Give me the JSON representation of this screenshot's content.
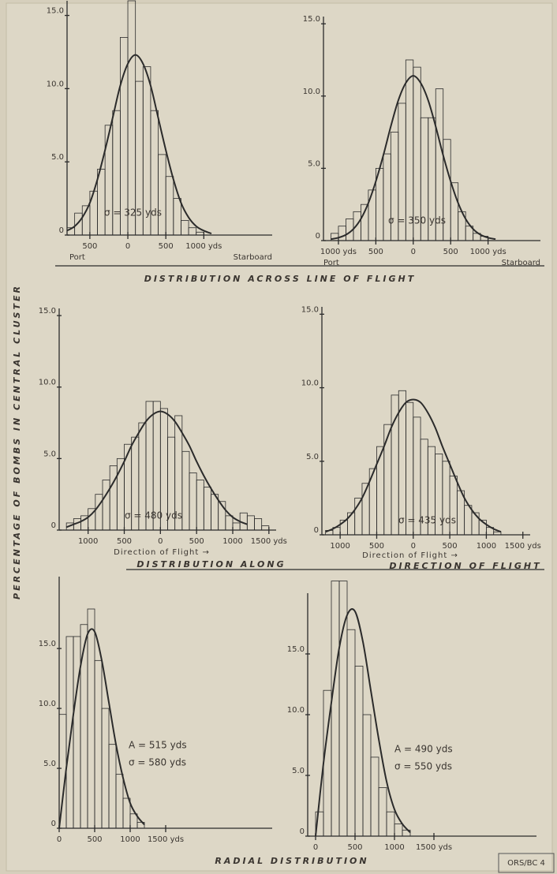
{
  "sheet": {
    "y_axis_title": "PERCENTAGE OF BOMBS IN CENTRAL CLUSTER",
    "heading_across": "DISTRIBUTION ACROSS LINE OF FLIGHT",
    "heading_along": "DISTRIBUTION ALONG",
    "heading_direction": "DIRECTION OF FLIGHT",
    "heading_radial": "RADIAL DISTRIBUTION",
    "stamp": "ORS/BC 4"
  },
  "chart_data": [
    {
      "type": "histogram",
      "color": "#2b2b2b",
      "bins": [
        -800,
        -700,
        -600,
        -500,
        -400,
        -300,
        -200,
        -100,
        0,
        100,
        200,
        300,
        400,
        500,
        600,
        700,
        800,
        900,
        1000
      ],
      "values": [
        0.5,
        1.5,
        2,
        3,
        4.5,
        7.5,
        8.5,
        13.5,
        16,
        10.5,
        11.5,
        8.5,
        5.5,
        4,
        2.5,
        1,
        0.5,
        0.2
      ],
      "curve": {
        "x": [
          -800,
          -700,
          -600,
          -500,
          -400,
          -300,
          -200,
          -100,
          0,
          100,
          200,
          300,
          400,
          500,
          600,
          700,
          800,
          900,
          1000,
          1100
        ],
        "values": [
          0.3,
          0.6,
          1.2,
          2.2,
          3.8,
          5.8,
          8.0,
          10.2,
          11.7,
          12.3,
          11.7,
          10.2,
          8.0,
          5.8,
          3.8,
          2.2,
          1.2,
          0.6,
          0.3,
          0.1
        ]
      },
      "xlim": [
        -800,
        1900
      ],
      "ylim": [
        0,
        16
      ],
      "xticks": [
        {
          "value": -500,
          "label": "500"
        },
        0,
        {
          "value": 500,
          "label": "500"
        },
        {
          "value": 1000,
          "label": "1000 yds"
        }
      ],
      "yticks": [
        0,
        {
          "value": 5,
          "label": "5.0"
        },
        {
          "value": 10,
          "label": "10.0"
        },
        {
          "value": 15,
          "label": "15.0"
        }
      ],
      "annotations": [
        "σ = 325 yds"
      ],
      "xlabel_left": "Port",
      "xlabel_right": "Starboard"
    },
    {
      "type": "histogram",
      "color": "#2b2b2b",
      "bins": [
        -1100,
        -1000,
        -900,
        -800,
        -700,
        -600,
        -500,
        -400,
        -300,
        -200,
        -100,
        0,
        100,
        200,
        300,
        400,
        500,
        600,
        700,
        800,
        900,
        1000
      ],
      "values": [
        0.5,
        1,
        1.5,
        2,
        2.5,
        3.5,
        5,
        6,
        7.5,
        9.5,
        12.5,
        12,
        8.5,
        8.5,
        10.5,
        7,
        4,
        2,
        1,
        0.5,
        0.3
      ],
      "curve": {
        "x": [
          -1100,
          -1000,
          -900,
          -800,
          -700,
          -600,
          -500,
          -400,
          -300,
          -200,
          -100,
          0,
          100,
          200,
          300,
          400,
          500,
          600,
          700,
          800,
          900,
          1000,
          1100
        ],
        "values": [
          0.1,
          0.2,
          0.4,
          0.8,
          1.5,
          2.6,
          4.1,
          5.9,
          7.9,
          9.7,
          10.9,
          11.4,
          10.9,
          9.7,
          7.9,
          5.9,
          4.1,
          2.6,
          1.5,
          0.8,
          0.4,
          0.2,
          0.1
        ]
      },
      "xlim": [
        -1200,
        1700
      ],
      "ylim": [
        0,
        15.5
      ],
      "xticks": [
        {
          "value": -1000,
          "label": "1000 yds"
        },
        {
          "value": -500,
          "label": "500"
        },
        0,
        {
          "value": 500,
          "label": "500"
        },
        {
          "value": 1000,
          "label": "1000 yds"
        }
      ],
      "yticks": [
        0,
        {
          "value": 5,
          "label": "5.0"
        },
        {
          "value": 10,
          "label": "10.0"
        },
        {
          "value": 15,
          "label": "15.0"
        }
      ],
      "annotations": [
        "σ = 350 yds"
      ],
      "xlabel_left": "Port",
      "xlabel_right": "Starboard"
    },
    {
      "type": "histogram",
      "color": "#2b2b2b",
      "bins": [
        -1300,
        -1200,
        -1100,
        -1000,
        -900,
        -800,
        -700,
        -600,
        -500,
        -400,
        -300,
        -200,
        -100,
        0,
        100,
        200,
        300,
        400,
        500,
        600,
        700,
        800,
        900,
        1000,
        1100,
        1200,
        1300,
        1400,
        1500
      ],
      "values": [
        0.5,
        0.8,
        1,
        1.5,
        2.5,
        3.5,
        4.5,
        5,
        6,
        6.5,
        7.5,
        9,
        9,
        8.5,
        6.5,
        8,
        5.5,
        4,
        3.5,
        3,
        2.5,
        2,
        1,
        0.5,
        1.2,
        1,
        0.8,
        0.3
      ],
      "curve": {
        "x": [
          -1300,
          -1200,
          -1100,
          -1000,
          -900,
          -800,
          -700,
          -600,
          -500,
          -400,
          -300,
          -200,
          -100,
          0,
          100,
          200,
          300,
          400,
          500,
          600,
          700,
          800,
          900,
          1000,
          1100,
          1200
        ],
        "values": [
          0.2,
          0.4,
          0.6,
          0.9,
          1.4,
          2.1,
          2.9,
          3.8,
          4.8,
          5.9,
          6.8,
          7.6,
          8.1,
          8.3,
          8.1,
          7.6,
          6.8,
          5.9,
          4.8,
          3.8,
          2.9,
          2.1,
          1.4,
          0.9,
          0.6,
          0.4
        ]
      },
      "xlim": [
        -1400,
        1600
      ],
      "ylim": [
        0,
        15.5
      ],
      "xticks": [
        {
          "value": -1000,
          "label": "1000"
        },
        {
          "value": -500,
          "label": "500"
        },
        0,
        {
          "value": 500,
          "label": "500"
        },
        1000,
        {
          "value": 1500,
          "label": "1500 yds"
        }
      ],
      "yticks": [
        0,
        {
          "value": 5,
          "label": "5.0"
        },
        {
          "value": 10,
          "label": "10.0"
        },
        {
          "value": 15,
          "label": "15.0"
        }
      ],
      "annotations": [
        "σ = 480 yds"
      ],
      "xlabel": "Direction of Flight →"
    },
    {
      "type": "histogram",
      "color": "#2b2b2b",
      "bins": [
        -1200,
        -1100,
        -1000,
        -900,
        -800,
        -700,
        -600,
        -500,
        -400,
        -300,
        -200,
        -100,
        0,
        100,
        200,
        300,
        400,
        500,
        600,
        700,
        800,
        900,
        1000,
        1100,
        1200
      ],
      "values": [
        0.3,
        0.5,
        1,
        1.5,
        2.5,
        3.5,
        4.5,
        6,
        7.5,
        9.5,
        9.8,
        9,
        8,
        6.5,
        6,
        5.5,
        5,
        4,
        3,
        2,
        1.5,
        1,
        0.5,
        0.2
      ],
      "curve": {
        "x": [
          -1200,
          -1100,
          -1000,
          -900,
          -800,
          -700,
          -600,
          -500,
          -400,
          -300,
          -200,
          -100,
          0,
          100,
          200,
          300,
          400,
          500,
          600,
          700,
          800,
          900,
          1000,
          1100,
          1200
        ],
        "values": [
          0.2,
          0.4,
          0.7,
          1.1,
          1.7,
          2.5,
          3.6,
          4.8,
          6.0,
          7.3,
          8.3,
          9.0,
          9.2,
          9.0,
          8.3,
          7.3,
          6.0,
          4.8,
          3.6,
          2.5,
          1.7,
          1.1,
          0.7,
          0.4,
          0.2
        ]
      },
      "xlim": [
        -1250,
        1600
      ],
      "ylim": [
        0,
        15.5
      ],
      "xticks": [
        {
          "value": -1000,
          "label": "1000"
        },
        {
          "value": -500,
          "label": "500"
        },
        0,
        {
          "value": 500,
          "label": "500"
        },
        1000,
        {
          "value": 1500,
          "label": "1500 yds"
        }
      ],
      "yticks": [
        0,
        {
          "value": 5,
          "label": "5.0"
        },
        {
          "value": 10,
          "label": "10.0"
        },
        {
          "value": 15,
          "label": "15.0"
        }
      ],
      "annotations": [
        "σ = 435 yds"
      ],
      "xlabel": "Direction of Flight →"
    },
    {
      "type": "histogram",
      "color": "#2b2b2b",
      "bins": [
        0,
        100,
        200,
        300,
        400,
        500,
        600,
        700,
        800,
        900,
        1000,
        1100,
        1200
      ],
      "values": [
        9.5,
        16,
        16,
        17,
        18.3,
        14,
        10,
        7,
        4.5,
        2.5,
        1.2,
        0.5
      ],
      "curve": {
        "x": [
          0,
          100,
          200,
          300,
          400,
          500,
          600,
          700,
          800,
          900,
          1000,
          1100,
          1200
        ],
        "values": [
          0,
          5,
          9.5,
          13.5,
          16.2,
          16.4,
          14,
          10.5,
          7,
          4.2,
          2.1,
          1,
          0.3
        ]
      },
      "xlim": [
        0,
        3000
      ],
      "ylim": [
        0,
        21
      ],
      "xticks": [
        0,
        500,
        1000,
        {
          "value": 1500,
          "label": "1500 yds"
        }
      ],
      "yticks": [
        0,
        {
          "value": 5,
          "label": "5.0"
        },
        {
          "value": 10,
          "label": "10.0"
        },
        {
          "value": 15,
          "label": "15.0"
        }
      ],
      "annotations": [
        "A = 515 yds",
        "σ = 580 yds"
      ]
    },
    {
      "type": "histogram",
      "color": "#2b2b2b",
      "bins": [
        0,
        100,
        200,
        300,
        400,
        500,
        600,
        700,
        800,
        900,
        1000,
        1100,
        1200
      ],
      "values": [
        2,
        12,
        21,
        21,
        17,
        14,
        10,
        6.5,
        4,
        2,
        1,
        0.5
      ],
      "curve": {
        "x": [
          0,
          100,
          200,
          300,
          400,
          500,
          600,
          700,
          800,
          900,
          1000,
          1100,
          1200
        ],
        "values": [
          0,
          6,
          11,
          15.5,
          18.2,
          18.5,
          16,
          12,
          8,
          4.5,
          2.2,
          1,
          0.3
        ]
      },
      "xlim": [
        -100,
        2800
      ],
      "ylim": [
        0,
        20
      ],
      "xticks": [
        0,
        500,
        1000,
        {
          "value": 1500,
          "label": "1500 yds"
        }
      ],
      "yticks": [
        0,
        {
          "value": 5,
          "label": "5.0"
        },
        {
          "value": 10,
          "label": "10.0"
        },
        {
          "value": 15,
          "label": "15.0"
        }
      ],
      "annotations": [
        "A = 490 yds",
        "σ = 550 yds"
      ]
    }
  ]
}
